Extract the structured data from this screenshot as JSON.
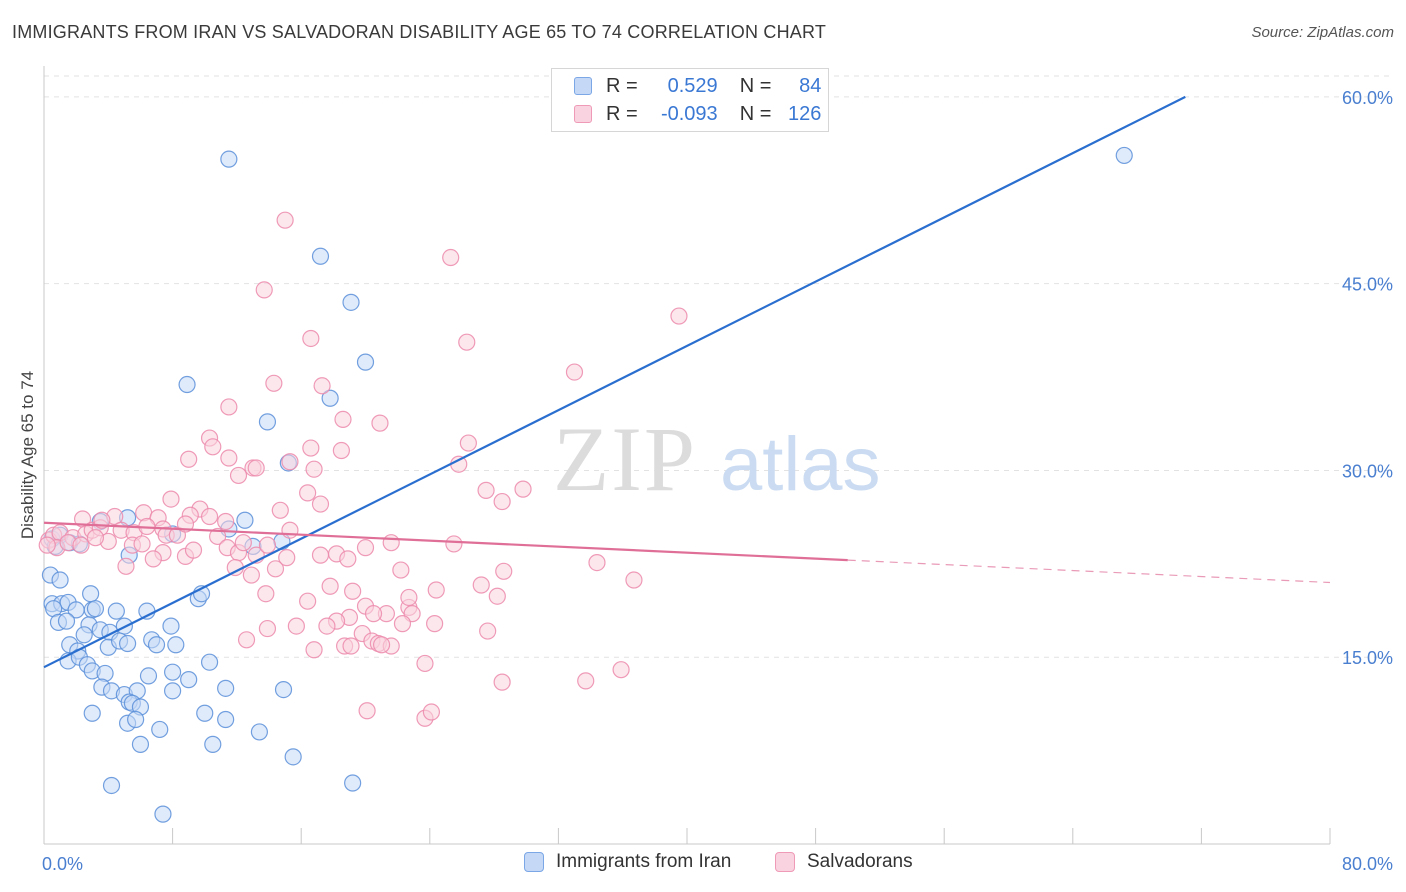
{
  "title": "IMMIGRANTS FROM IRAN VS SALVADORAN DISABILITY AGE 65 TO 74 CORRELATION CHART",
  "source": "Source: ZipAtlas.com",
  "watermark": {
    "zip": "ZIP",
    "atlas": "atlas"
  },
  "legend": {
    "r_label": "R =",
    "n_label": "N =",
    "rows": [
      {
        "r": "0.529",
        "n": "84",
        "color": "#7ba7e6",
        "fill": "#c5d8f5"
      },
      {
        "r": "-0.093",
        "n": "126",
        "color": "#ef9ab6",
        "fill": "#f9d3df"
      }
    ]
  },
  "bottom_legend": [
    {
      "label": "Immigrants from Iran",
      "color": "#7ba7e6",
      "fill": "#c5d8f5"
    },
    {
      "label": "Salvadorans",
      "color": "#ef9ab6",
      "fill": "#f9d3df"
    }
  ],
  "chart_data": {
    "type": "scatter",
    "xlabel": "",
    "ylabel": "Disability Age 65 to 74",
    "xlim": [
      0,
      80
    ],
    "ylim": [
      0,
      62
    ],
    "x_tick_labels": [
      "0.0%",
      "80.0%"
    ],
    "y_ticks": [
      15,
      30,
      45,
      60
    ],
    "y_tick_labels": [
      "15.0%",
      "30.0%",
      "45.0%",
      "60.0%"
    ],
    "grid": true,
    "series": [
      {
        "name": "Immigrants from Iran",
        "color": "#5b8fd9",
        "fill": "#c5d8f5",
        "trend": {
          "x0": 0,
          "y0": 14.2,
          "x1": 71,
          "y1": 60,
          "color": "#2a6fcf"
        },
        "points": [
          [
            11.5,
            55.0
          ],
          [
            17.2,
            47.2
          ],
          [
            19.1,
            43.5
          ],
          [
            20.0,
            38.7
          ],
          [
            8.9,
            36.9
          ],
          [
            17.8,
            35.8
          ],
          [
            13.9,
            33.9
          ],
          [
            15.2,
            30.6
          ],
          [
            0.5,
            24.5
          ],
          [
            1.0,
            24.8
          ],
          [
            1.6,
            24.2
          ],
          [
            2.2,
            24.1
          ],
          [
            0.7,
            23.9
          ],
          [
            3.5,
            25.9
          ],
          [
            5.2,
            26.2
          ],
          [
            8.0,
            24.9
          ],
          [
            11.5,
            25.3
          ],
          [
            12.5,
            26.0
          ],
          [
            13.0,
            23.9
          ],
          [
            14.8,
            24.3
          ],
          [
            5.3,
            23.2
          ],
          [
            0.4,
            21.6
          ],
          [
            1.0,
            21.2
          ],
          [
            2.9,
            20.1
          ],
          [
            0.5,
            19.3
          ],
          [
            1.1,
            19.3
          ],
          [
            1.5,
            19.4
          ],
          [
            0.6,
            18.9
          ],
          [
            2.0,
            18.8
          ],
          [
            3.0,
            18.8
          ],
          [
            3.2,
            18.9
          ],
          [
            4.5,
            18.7
          ],
          [
            6.4,
            18.7
          ],
          [
            9.6,
            19.7
          ],
          [
            9.8,
            20.1
          ],
          [
            0.9,
            17.8
          ],
          [
            1.4,
            17.9
          ],
          [
            2.8,
            17.6
          ],
          [
            3.5,
            17.2
          ],
          [
            4.1,
            17.0
          ],
          [
            5.0,
            17.5
          ],
          [
            7.9,
            17.5
          ],
          [
            1.6,
            16.0
          ],
          [
            2.1,
            15.5
          ],
          [
            2.5,
            16.8
          ],
          [
            4.0,
            15.8
          ],
          [
            4.7,
            16.3
          ],
          [
            5.2,
            16.1
          ],
          [
            6.7,
            16.4
          ],
          [
            7.0,
            16.0
          ],
          [
            8.2,
            16.0
          ],
          [
            1.5,
            14.7
          ],
          [
            2.2,
            15.0
          ],
          [
            2.7,
            14.4
          ],
          [
            3.0,
            13.9
          ],
          [
            3.8,
            13.7
          ],
          [
            6.5,
            13.5
          ],
          [
            8.0,
            13.8
          ],
          [
            10.3,
            14.6
          ],
          [
            3.6,
            12.6
          ],
          [
            4.2,
            12.3
          ],
          [
            5.0,
            12.0
          ],
          [
            5.8,
            12.3
          ],
          [
            8.0,
            12.3
          ],
          [
            9.0,
            13.2
          ],
          [
            11.3,
            12.5
          ],
          [
            14.9,
            12.4
          ],
          [
            5.3,
            11.4
          ],
          [
            5.5,
            11.3
          ],
          [
            6.0,
            11.0
          ],
          [
            3.0,
            10.5
          ],
          [
            5.2,
            9.7
          ],
          [
            5.7,
            10.0
          ],
          [
            10.0,
            10.5
          ],
          [
            11.3,
            10.0
          ],
          [
            13.4,
            9.0
          ],
          [
            6.0,
            8.0
          ],
          [
            10.5,
            8.0
          ],
          [
            7.2,
            9.2
          ],
          [
            15.5,
            7.0
          ],
          [
            4.2,
            4.7
          ],
          [
            19.2,
            4.9
          ],
          [
            7.4,
            2.4
          ],
          [
            67.2,
            55.3
          ]
        ]
      },
      {
        "name": "Salvadorans",
        "color": "#ec8aab",
        "fill": "#f9d3df",
        "trend": {
          "x0": 0,
          "y0": 25.8,
          "x1": 50,
          "y1": 22.8,
          "x2": 80,
          "y2": 21.0,
          "color": "#e06f98"
        },
        "points": [
          [
            15.0,
            50.1
          ],
          [
            25.3,
            47.1
          ],
          [
            13.7,
            44.5
          ],
          [
            39.5,
            42.4
          ],
          [
            16.6,
            40.6
          ],
          [
            26.3,
            40.3
          ],
          [
            33.0,
            37.9
          ],
          [
            14.3,
            37.0
          ],
          [
            17.3,
            36.8
          ],
          [
            11.5,
            35.1
          ],
          [
            18.6,
            34.1
          ],
          [
            20.9,
            33.8
          ],
          [
            10.3,
            32.6
          ],
          [
            10.5,
            31.9
          ],
          [
            26.4,
            32.2
          ],
          [
            16.6,
            31.8
          ],
          [
            18.5,
            31.6
          ],
          [
            9.0,
            30.9
          ],
          [
            11.5,
            31.0
          ],
          [
            15.3,
            30.7
          ],
          [
            25.8,
            30.5
          ],
          [
            13.0,
            30.2
          ],
          [
            13.2,
            30.2
          ],
          [
            16.8,
            30.1
          ],
          [
            12.1,
            29.6
          ],
          [
            27.5,
            28.4
          ],
          [
            29.8,
            28.5
          ],
          [
            16.4,
            28.2
          ],
          [
            28.5,
            27.5
          ],
          [
            7.9,
            27.7
          ],
          [
            17.2,
            27.3
          ],
          [
            6.2,
            26.6
          ],
          [
            9.7,
            26.9
          ],
          [
            14.7,
            26.8
          ],
          [
            2.4,
            26.1
          ],
          [
            4.4,
            26.3
          ],
          [
            7.1,
            26.2
          ],
          [
            9.1,
            26.4
          ],
          [
            10.3,
            26.3
          ],
          [
            11.3,
            25.9
          ],
          [
            15.3,
            25.2
          ],
          [
            0.3,
            24.4
          ],
          [
            0.6,
            24.8
          ],
          [
            1.0,
            25.0
          ],
          [
            1.8,
            24.6
          ],
          [
            2.6,
            24.9
          ],
          [
            3.0,
            25.2
          ],
          [
            3.5,
            25.4
          ],
          [
            4.8,
            25.2
          ],
          [
            5.6,
            25.0
          ],
          [
            6.4,
            25.5
          ],
          [
            7.4,
            25.3
          ],
          [
            7.6,
            24.8
          ],
          [
            8.3,
            24.8
          ],
          [
            8.8,
            25.7
          ],
          [
            10.8,
            24.7
          ],
          [
            0.8,
            23.8
          ],
          [
            1.5,
            24.2
          ],
          [
            2.3,
            24.0
          ],
          [
            4.0,
            24.3
          ],
          [
            5.5,
            24.0
          ],
          [
            6.1,
            24.1
          ],
          [
            7.4,
            23.4
          ],
          [
            8.8,
            23.1
          ],
          [
            11.4,
            23.8
          ],
          [
            12.1,
            23.4
          ],
          [
            12.4,
            24.2
          ],
          [
            13.2,
            23.2
          ],
          [
            13.9,
            24.0
          ],
          [
            15.1,
            23.0
          ],
          [
            17.2,
            23.2
          ],
          [
            18.2,
            23.3
          ],
          [
            20.0,
            23.8
          ],
          [
            21.6,
            24.2
          ],
          [
            25.5,
            24.1
          ],
          [
            5.1,
            22.3
          ],
          [
            11.9,
            22.2
          ],
          [
            12.9,
            21.6
          ],
          [
            14.4,
            22.1
          ],
          [
            18.9,
            22.9
          ],
          [
            22.2,
            22.0
          ],
          [
            28.6,
            21.9
          ],
          [
            34.4,
            22.6
          ],
          [
            36.7,
            21.2
          ],
          [
            27.2,
            20.8
          ],
          [
            17.8,
            20.7
          ],
          [
            19.2,
            20.3
          ],
          [
            13.8,
            20.1
          ],
          [
            24.4,
            20.4
          ],
          [
            28.2,
            19.9
          ],
          [
            16.4,
            19.5
          ],
          [
            20.0,
            19.1
          ],
          [
            22.7,
            19.0
          ],
          [
            22.9,
            18.5
          ],
          [
            19.0,
            18.2
          ],
          [
            21.3,
            18.5
          ],
          [
            22.3,
            17.7
          ],
          [
            18.2,
            17.9
          ],
          [
            24.3,
            17.7
          ],
          [
            17.6,
            17.5
          ],
          [
            13.9,
            17.3
          ],
          [
            15.7,
            17.5
          ],
          [
            27.6,
            17.1
          ],
          [
            19.8,
            16.9
          ],
          [
            20.4,
            16.3
          ],
          [
            20.8,
            16.1
          ],
          [
            18.7,
            15.9
          ],
          [
            21.6,
            15.9
          ],
          [
            16.8,
            15.6
          ],
          [
            19.1,
            15.9
          ],
          [
            28.5,
            13.0
          ],
          [
            33.7,
            13.1
          ],
          [
            35.9,
            14.0
          ],
          [
            23.7,
            14.5
          ],
          [
            23.7,
            10.1
          ],
          [
            24.1,
            10.6
          ],
          [
            20.1,
            10.7
          ],
          [
            22.7,
            19.8
          ],
          [
            20.5,
            18.5
          ],
          [
            21.0,
            16.0
          ],
          [
            12.6,
            16.4
          ],
          [
            9.3,
            23.6
          ],
          [
            6.8,
            22.9
          ],
          [
            3.2,
            24.6
          ],
          [
            0.2,
            24.0
          ],
          [
            3.6,
            26.0
          ]
        ]
      }
    ]
  }
}
